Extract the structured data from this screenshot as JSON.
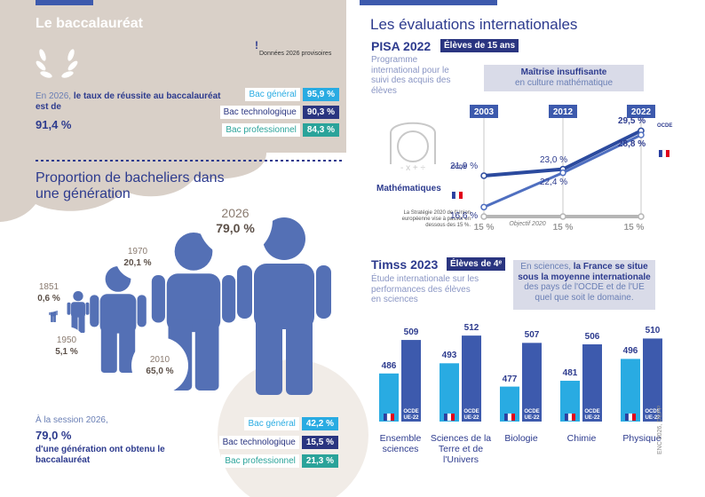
{
  "left": {
    "title": "Le baccalauréat",
    "note_icon": "!",
    "note": "Données 2026 provisoires",
    "success": {
      "intro": "En 2026,",
      "intro_bold": "le taux de réussite au baccalauréat est de",
      "value": "91,4 %"
    },
    "success_rates": [
      {
        "label": "Bac général",
        "value": "95,9 %"
      },
      {
        "label": "Bac technologique",
        "value": "90,3 %"
      },
      {
        "label": "Bac professionnel",
        "value": "84,3 %"
      }
    ],
    "generation": {
      "title": "Proportion de bacheliers dans une génération",
      "points": [
        {
          "year": "1851",
          "value": "0,6 %"
        },
        {
          "year": "1950",
          "value": "5,1 %"
        },
        {
          "year": "1970",
          "value": "20,1 %"
        },
        {
          "year": "2010",
          "value": "65,0 %"
        },
        {
          "year": "2026",
          "value": "79,0 %"
        }
      ]
    },
    "session": {
      "intro": "À la session 2026,",
      "value": "79,0 %",
      "text": "d'une génération ont obtenu le baccalauréat"
    },
    "shares": [
      {
        "label": "Bac général",
        "value": "42,2 %"
      },
      {
        "label": "Bac technologique",
        "value": "15,5 %"
      },
      {
        "label": "Bac professionnel",
        "value": "21,3 %"
      }
    ]
  },
  "right": {
    "title": "Les évaluations internationales",
    "pisa": {
      "title": "PISA 2022",
      "badge": "Élèves de 15 ans",
      "description": "Programme international pour le suivi des acquis des élèves",
      "box_title": "Maîtrise insuffisante",
      "box_text": "en culture mathématique",
      "subject": "Mathématiques",
      "categories": [
        "2003",
        "2012",
        "2022"
      ],
      "ylim": [
        15,
        30
      ],
      "series": [
        {
          "name": "OCDE",
          "color": "#2b4a9e",
          "values": [
            21.9,
            23.0,
            29.5
          ],
          "value_labels": [
            "21,9 %",
            "23,0 %",
            "29,5 %"
          ]
        },
        {
          "color": "#4f6fc0",
          "values": [
            16.6,
            22.4,
            28.8
          ],
          "value_labels": [
            "16,6 %",
            "22,4 %",
            "28,8 %"
          ]
        }
      ],
      "target": {
        "color": "#b5b5b5",
        "values": [
          15,
          15,
          15
        ],
        "value_labels": [
          "15 %",
          "15 %",
          "15 %"
        ],
        "label": "Objectif 2020",
        "note": "La Stratégie 2020 de l'Union européenne vise à passer en dessous des 15 %."
      }
    },
    "timss": {
      "title": "Timss 2023",
      "badge": "Élèves de 4ᵉ",
      "description": "Étude internationale sur les performances des élèves en sciences",
      "box": {
        "text1": "En sciences,",
        "bold": "la France se situe sous la moyenne internationale",
        "text2": "des pays de l'OCDE et de l'UE quel que soit le domaine."
      },
      "categories": [
        "Ensemble sciences",
        "Sciences de la Terre et de l'Univers",
        "Biologie",
        "Chimie",
        "Physique"
      ],
      "ylim": [
        453,
        520
      ],
      "series": [
        {
          "color": "#29abe2",
          "values": [
            486,
            493,
            477,
            481,
            496
          ]
        },
        {
          "name": "OCDE UE-22",
          "color": "#3d5aad",
          "values": [
            509,
            512,
            507,
            506,
            510
          ]
        }
      ]
    },
    "source": "ENC 2026, DEPP"
  }
}
